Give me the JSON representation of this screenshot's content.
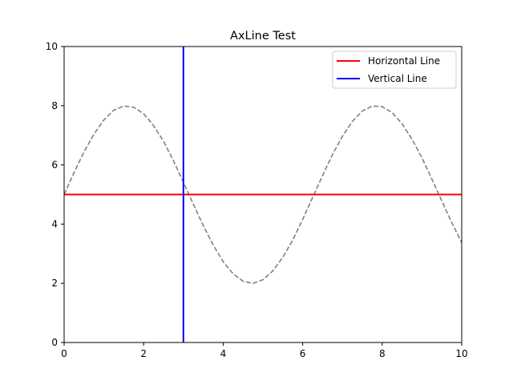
{
  "chart_data": {
    "type": "line",
    "title": "AxLine Test",
    "xlabel": "",
    "ylabel": "",
    "xlim": [
      0,
      10
    ],
    "ylim": [
      0,
      10
    ],
    "xticks": [
      0,
      2,
      4,
      6,
      8,
      10
    ],
    "yticks": [
      0,
      2,
      4,
      6,
      8,
      10
    ],
    "grid": false,
    "legend_position": "top-right",
    "series": [
      {
        "kind": "curve",
        "style": "dashed",
        "color": "#808080",
        "x": [
          0,
          0.25,
          0.5,
          0.75,
          1,
          1.25,
          1.5,
          1.75,
          2,
          2.25,
          2.5,
          2.75,
          3,
          3.25,
          3.5,
          3.75,
          4,
          4.25,
          4.5,
          4.75,
          5,
          5.25,
          5.5,
          5.75,
          6,
          6.25,
          6.5,
          6.75,
          7,
          7.25,
          7.5,
          7.75,
          8,
          8.25,
          8.5,
          8.75,
          9,
          9.25,
          9.5,
          9.75,
          10
        ],
        "y": [
          5.0,
          5.74,
          6.44,
          7.04,
          7.52,
          7.85,
          7.99,
          7.95,
          7.73,
          7.33,
          6.8,
          6.14,
          5.42,
          4.67,
          3.95,
          3.29,
          2.73,
          2.32,
          2.07,
          2.0,
          2.12,
          2.42,
          2.88,
          3.46,
          4.16,
          4.9,
          5.64,
          6.35,
          6.97,
          7.47,
          7.82,
          7.99,
          7.97,
          7.77,
          7.39,
          6.87,
          6.24,
          5.52,
          4.78,
          4.05,
          3.37
        ]
      },
      {
        "kind": "hline",
        "name": "Horizontal Line",
        "y": 5,
        "color": "#ff0000"
      },
      {
        "kind": "vline",
        "name": "Vertical Line",
        "x": 3,
        "color": "#0000ff"
      }
    ]
  }
}
